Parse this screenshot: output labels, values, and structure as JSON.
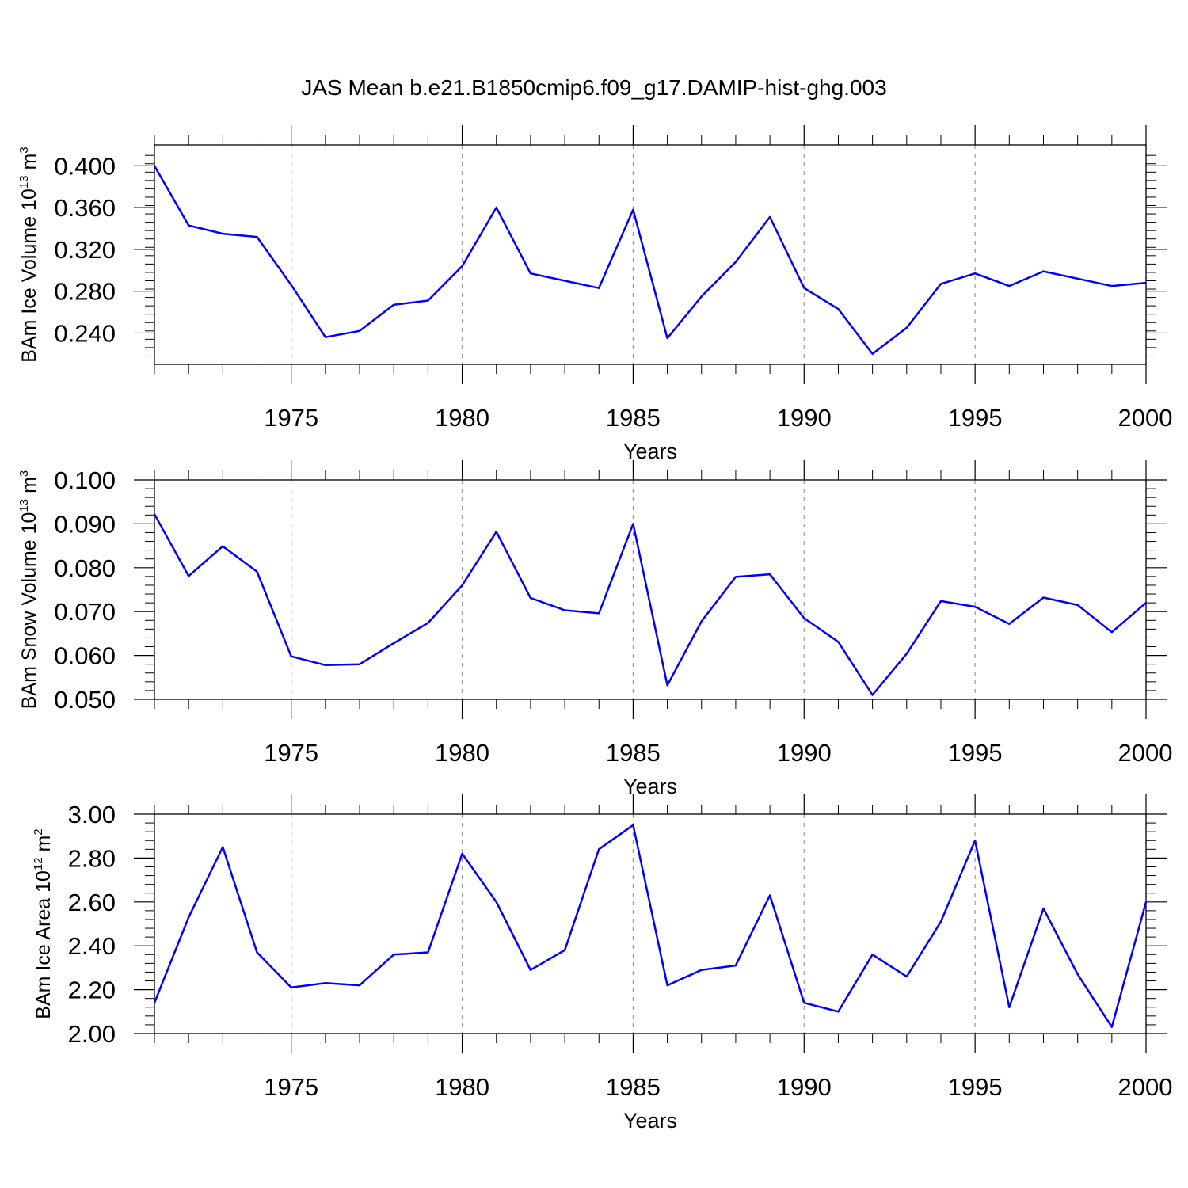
{
  "title": "JAS Mean b.e21.B1850cmip6.f09_g17.DAMIP-hist-ghg.003",
  "colors": {
    "line": "#0000ff",
    "axis": "#000000",
    "grid": "#999999"
  },
  "chart_data": [
    {
      "type": "line",
      "ylabel_parts": [
        "BAm Ice Volume 10",
        "13",
        " m",
        "3"
      ],
      "xlabel": "Years",
      "xlim": [
        1971,
        2000
      ],
      "ylim": [
        0.21,
        0.42
      ],
      "xticks": [
        1975,
        1980,
        1985,
        1990,
        1995,
        2000
      ],
      "xtick_labels": [
        "1975",
        "1980",
        "1985",
        "1990",
        "1995",
        "2000"
      ],
      "yticks": [
        0.24,
        0.28,
        0.32,
        0.36,
        0.4
      ],
      "ytick_labels": [
        "0.240",
        "0.280",
        "0.320",
        "0.360",
        "0.400"
      ],
      "yminor_step": 0.008,
      "grid": "vertical dashed at major x ticks",
      "x": [
        1971,
        1972,
        1973,
        1974,
        1975,
        1976,
        1977,
        1978,
        1979,
        1980,
        1981,
        1982,
        1983,
        1984,
        1985,
        1986,
        1987,
        1988,
        1989,
        1990,
        1991,
        1992,
        1993,
        1994,
        1995,
        1996,
        1997,
        1998,
        1999,
        2000
      ],
      "values": [
        0.4,
        0.343,
        0.335,
        0.332,
        0.286,
        0.236,
        0.242,
        0.267,
        0.271,
        0.304,
        0.36,
        0.297,
        0.29,
        0.283,
        0.358,
        0.235,
        0.275,
        0.308,
        0.351,
        0.283,
        0.263,
        0.22,
        0.245,
        0.287,
        0.297,
        0.285,
        0.299,
        0.292,
        0.285,
        0.288
      ]
    },
    {
      "type": "line",
      "ylabel_parts": [
        "BAm Snow Volume 10",
        "13",
        " m",
        "3"
      ],
      "xlabel": "Years",
      "xlim": [
        1971,
        2000
      ],
      "ylim": [
        0.05,
        0.1
      ],
      "xticks": [
        1975,
        1980,
        1985,
        1990,
        1995,
        2000
      ],
      "xtick_labels": [
        "1975",
        "1980",
        "1985",
        "1990",
        "1995",
        "2000"
      ],
      "yticks": [
        0.05,
        0.06,
        0.07,
        0.08,
        0.09,
        0.1
      ],
      "ytick_labels": [
        "0.050",
        "0.060",
        "0.070",
        "0.080",
        "0.090",
        "0.100"
      ],
      "yminor_step": 0.002,
      "grid": "vertical dashed at major x ticks",
      "x": [
        1971,
        1972,
        1973,
        1974,
        1975,
        1976,
        1977,
        1978,
        1979,
        1980,
        1981,
        1982,
        1983,
        1984,
        1985,
        1986,
        1987,
        1988,
        1989,
        1990,
        1991,
        1992,
        1993,
        1994,
        1995,
        1996,
        1997,
        1998,
        1999,
        2000
      ],
      "values": [
        0.0922,
        0.0781,
        0.0849,
        0.0791,
        0.0598,
        0.0578,
        0.058,
        0.0628,
        0.0674,
        0.076,
        0.0882,
        0.0731,
        0.0703,
        0.0696,
        0.09,
        0.0532,
        0.0678,
        0.0779,
        0.0785,
        0.0685,
        0.0631,
        0.051,
        0.0604,
        0.0724,
        0.0711,
        0.0672,
        0.0732,
        0.0715,
        0.0653,
        0.072
      ]
    },
    {
      "type": "line",
      "ylabel_parts": [
        "BAm Ice Area 10",
        "12",
        " m",
        "2"
      ],
      "xlabel": "Years",
      "xlim": [
        1971,
        2000
      ],
      "ylim": [
        2.0,
        3.0
      ],
      "xticks": [
        1975,
        1980,
        1985,
        1990,
        1995,
        2000
      ],
      "xtick_labels": [
        "1975",
        "1980",
        "1985",
        "1990",
        "1995",
        "2000"
      ],
      "yticks": [
        2.0,
        2.2,
        2.4,
        2.6,
        2.8,
        3.0
      ],
      "ytick_labels": [
        "2.00",
        "2.20",
        "2.40",
        "2.60",
        "2.80",
        "3.00"
      ],
      "yminor_step": 0.04,
      "grid": "vertical dashed at major x ticks",
      "x": [
        1971,
        1972,
        1973,
        1974,
        1975,
        1976,
        1977,
        1978,
        1979,
        1980,
        1981,
        1982,
        1983,
        1984,
        1985,
        1986,
        1987,
        1988,
        1989,
        1990,
        1991,
        1992,
        1993,
        1994,
        1995,
        1996,
        1997,
        1998,
        1999,
        2000
      ],
      "values": [
        2.14,
        2.53,
        2.85,
        2.37,
        2.21,
        2.23,
        2.22,
        2.36,
        2.37,
        2.82,
        2.6,
        2.29,
        2.38,
        2.84,
        2.95,
        2.22,
        2.29,
        2.31,
        2.63,
        2.14,
        2.1,
        2.36,
        2.26,
        2.51,
        2.88,
        2.12,
        2.57,
        2.27,
        2.03,
        2.6
      ]
    }
  ]
}
